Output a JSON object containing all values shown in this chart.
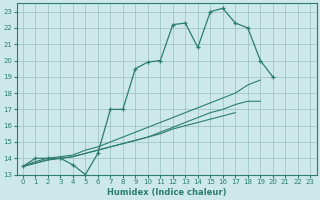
{
  "xlabel": "Humidex (Indice chaleur)",
  "xlim": [
    -0.5,
    23.5
  ],
  "ylim": [
    13,
    23.5
  ],
  "xticks": [
    0,
    1,
    2,
    3,
    4,
    5,
    6,
    7,
    8,
    9,
    10,
    11,
    12,
    13,
    14,
    15,
    16,
    17,
    18,
    19,
    20,
    21,
    22,
    23
  ],
  "yticks": [
    13,
    14,
    15,
    16,
    17,
    18,
    19,
    20,
    21,
    22,
    23
  ],
  "bg_color": "#cce8e8",
  "line_color": "#2d7d6e",
  "grid_color": "#9bbfbf",
  "line1_x": [
    0,
    1,
    2,
    3,
    4,
    5,
    6,
    7,
    8,
    9,
    10,
    11,
    12,
    13,
    14,
    15,
    16,
    17,
    18,
    19,
    20
  ],
  "line1_y": [
    13.5,
    14.0,
    14.0,
    14.0,
    13.6,
    13.0,
    14.3,
    17.0,
    17.0,
    19.5,
    19.9,
    20.0,
    22.2,
    22.3,
    20.8,
    23.0,
    23.2,
    22.3,
    22.0,
    20.0,
    19.0
  ],
  "line2_x": [
    0,
    1,
    2,
    3,
    4,
    5,
    6,
    7,
    8,
    9,
    10,
    11,
    12,
    13,
    14,
    15,
    16,
    17,
    18,
    19,
    20,
    21,
    22,
    23
  ],
  "line2_y": [
    13.5,
    13.8,
    14.0,
    14.1,
    14.2,
    14.5,
    14.7,
    15.0,
    15.3,
    15.6,
    15.9,
    16.2,
    16.5,
    16.8,
    17.1,
    17.4,
    17.7,
    18.0,
    18.5,
    18.8,
    null,
    null,
    null,
    null
  ],
  "line3_x": [
    0,
    1,
    2,
    3,
    4,
    5,
    6,
    7,
    8,
    9,
    10,
    11,
    12,
    13,
    14,
    15,
    16,
    17,
    18,
    19,
    20,
    21,
    22,
    23
  ],
  "line3_y": [
    13.5,
    13.7,
    13.9,
    14.0,
    14.1,
    14.3,
    14.5,
    14.7,
    14.9,
    15.1,
    15.3,
    15.5,
    15.8,
    16.0,
    16.2,
    16.4,
    16.6,
    16.8,
    null,
    null,
    null,
    null,
    null,
    null
  ],
  "line4_x": [
    0,
    1,
    2,
    3,
    4,
    5,
    6,
    7,
    8,
    9,
    10,
    11,
    12,
    13,
    14,
    15,
    16,
    17,
    18,
    19,
    20,
    21,
    22,
    23
  ],
  "line4_y": [
    13.5,
    13.7,
    13.9,
    14.0,
    14.1,
    14.3,
    14.5,
    14.7,
    14.9,
    15.1,
    15.3,
    15.6,
    15.9,
    16.2,
    16.5,
    16.8,
    17.0,
    17.3,
    17.5,
    17.5,
    null,
    null,
    null,
    null
  ]
}
